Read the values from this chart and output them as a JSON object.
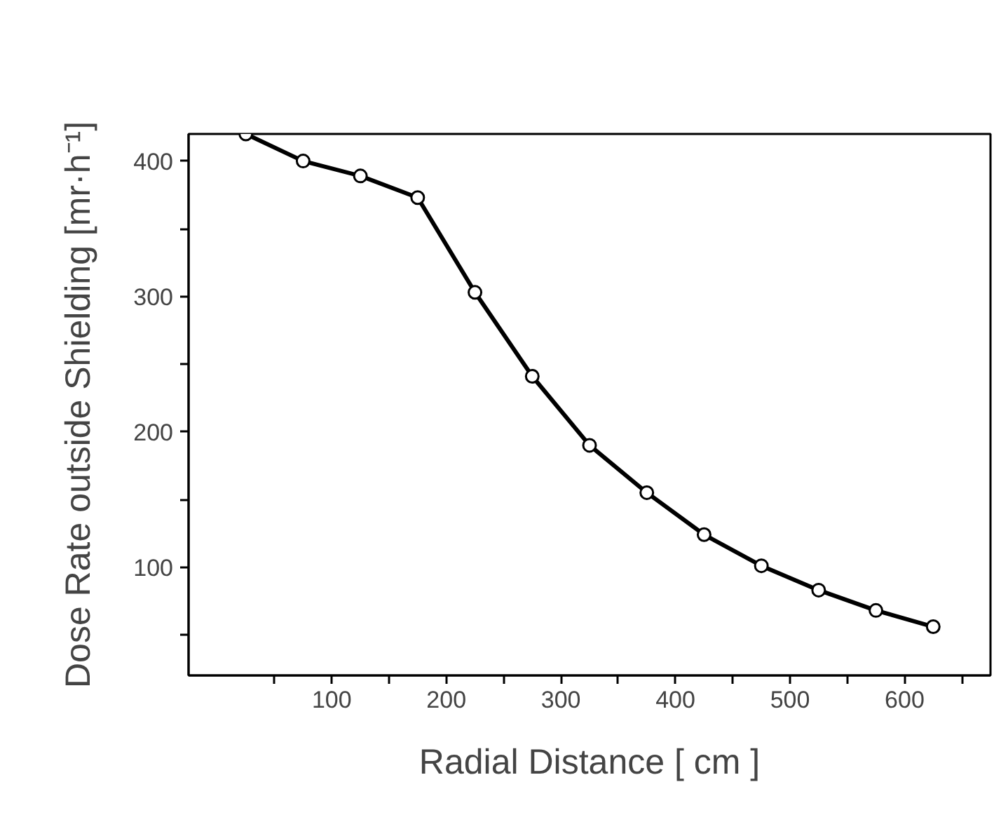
{
  "chart_data": {
    "type": "line",
    "xlabel": "Radial Distance [ cm ]",
    "ylabel": "Dose Rate outside Shielding [mr·h⁻¹]",
    "x": [
      25,
      75,
      125,
      175,
      225,
      275,
      325,
      375,
      425,
      475,
      525,
      575,
      625
    ],
    "series": [
      {
        "color": "#000000",
        "values": [
          420,
          400,
          389,
          373,
          303,
          241,
          190,
          155,
          124,
          101,
          83,
          68,
          56
        ]
      }
    ],
    "xlim": [
      -25,
      675
    ],
    "ylim": [
      20,
      420
    ],
    "xticks": [
      {
        "value": 50,
        "label": null
      },
      100,
      {
        "value": 150,
        "label": null
      },
      200,
      {
        "value": 250,
        "label": null
      },
      300,
      {
        "value": 350,
        "label": null
      },
      400,
      {
        "value": 450,
        "label": null
      },
      500,
      {
        "value": 550,
        "label": null
      },
      600,
      {
        "value": 650,
        "label": null
      }
    ],
    "yticks": [
      {
        "value": 50,
        "label": null
      },
      100,
      {
        "value": 150,
        "label": null
      },
      200,
      {
        "value": 250,
        "label": null
      },
      300,
      {
        "value": 350,
        "label": null
      },
      400
    ],
    "grid": false,
    "marker": "circle",
    "line_style": "solid"
  }
}
